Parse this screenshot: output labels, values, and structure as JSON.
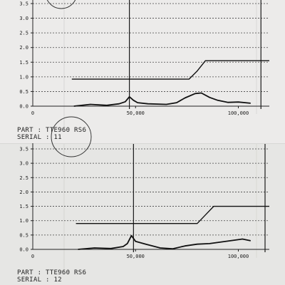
{
  "chart_data": [
    {
      "type": "line",
      "x_ticks": [
        "50,000",
        "100,000"
      ],
      "y_ticks": [
        "0.0",
        "0.5",
        "1.0",
        "1.5",
        "2.0",
        "2.5",
        "3.0",
        "3.5"
      ],
      "xlim": [
        0,
        113000
      ],
      "ylim": [
        0,
        3.6
      ],
      "grid": true,
      "series": [
        {
          "x": [
            19000,
            76000,
            80000,
            84000,
            120000
          ],
          "y": [
            0.92,
            0.92,
            1.2,
            1.55,
            1.55
          ]
        },
        {
          "x": [
            20000,
            28000,
            36000,
            42000,
            45000,
            47000,
            49000,
            51000,
            56000,
            65000,
            70000,
            74000,
            79000,
            82000,
            86000,
            90000,
            95000,
            100000,
            106000
          ],
          "y": [
            0.0,
            0.06,
            0.03,
            0.08,
            0.15,
            0.32,
            0.2,
            0.12,
            0.08,
            0.06,
            0.12,
            0.28,
            0.43,
            0.45,
            0.3,
            0.2,
            0.13,
            0.14,
            0.1
          ]
        }
      ],
      "markers_x": [
        47000,
        111000
      ],
      "caption": {
        "part": "PART : TTE960 RS6",
        "serial": "SERIAL : 11"
      }
    },
    {
      "type": "line",
      "x_ticks": [
        "50,000",
        "100,000"
      ],
      "y_ticks": [
        "0.0",
        "0.5",
        "1.0",
        "1.5",
        "2.0",
        "2.5",
        "3.0",
        "3.5"
      ],
      "xlim": [
        0,
        113000
      ],
      "ylim": [
        0,
        3.6
      ],
      "grid": true,
      "series": [
        {
          "x": [
            21000,
            80000,
            84000,
            88000,
            120000
          ],
          "y": [
            0.9,
            0.9,
            1.2,
            1.5,
            1.5
          ]
        },
        {
          "x": [
            22000,
            30000,
            38000,
            44000,
            46000,
            48000,
            50000,
            55000,
            62000,
            68000,
            74000,
            80000,
            86000,
            92000,
            98000,
            102000,
            106000
          ],
          "y": [
            0.0,
            0.05,
            0.03,
            0.1,
            0.2,
            0.48,
            0.28,
            0.18,
            0.05,
            0.02,
            0.12,
            0.18,
            0.2,
            0.26,
            0.32,
            0.36,
            0.3
          ]
        }
      ],
      "markers_x": [
        49000,
        113000
      ],
      "caption": {
        "part": "PART : TTE960 RS6",
        "serial": "SERIAL : 12"
      }
    }
  ]
}
